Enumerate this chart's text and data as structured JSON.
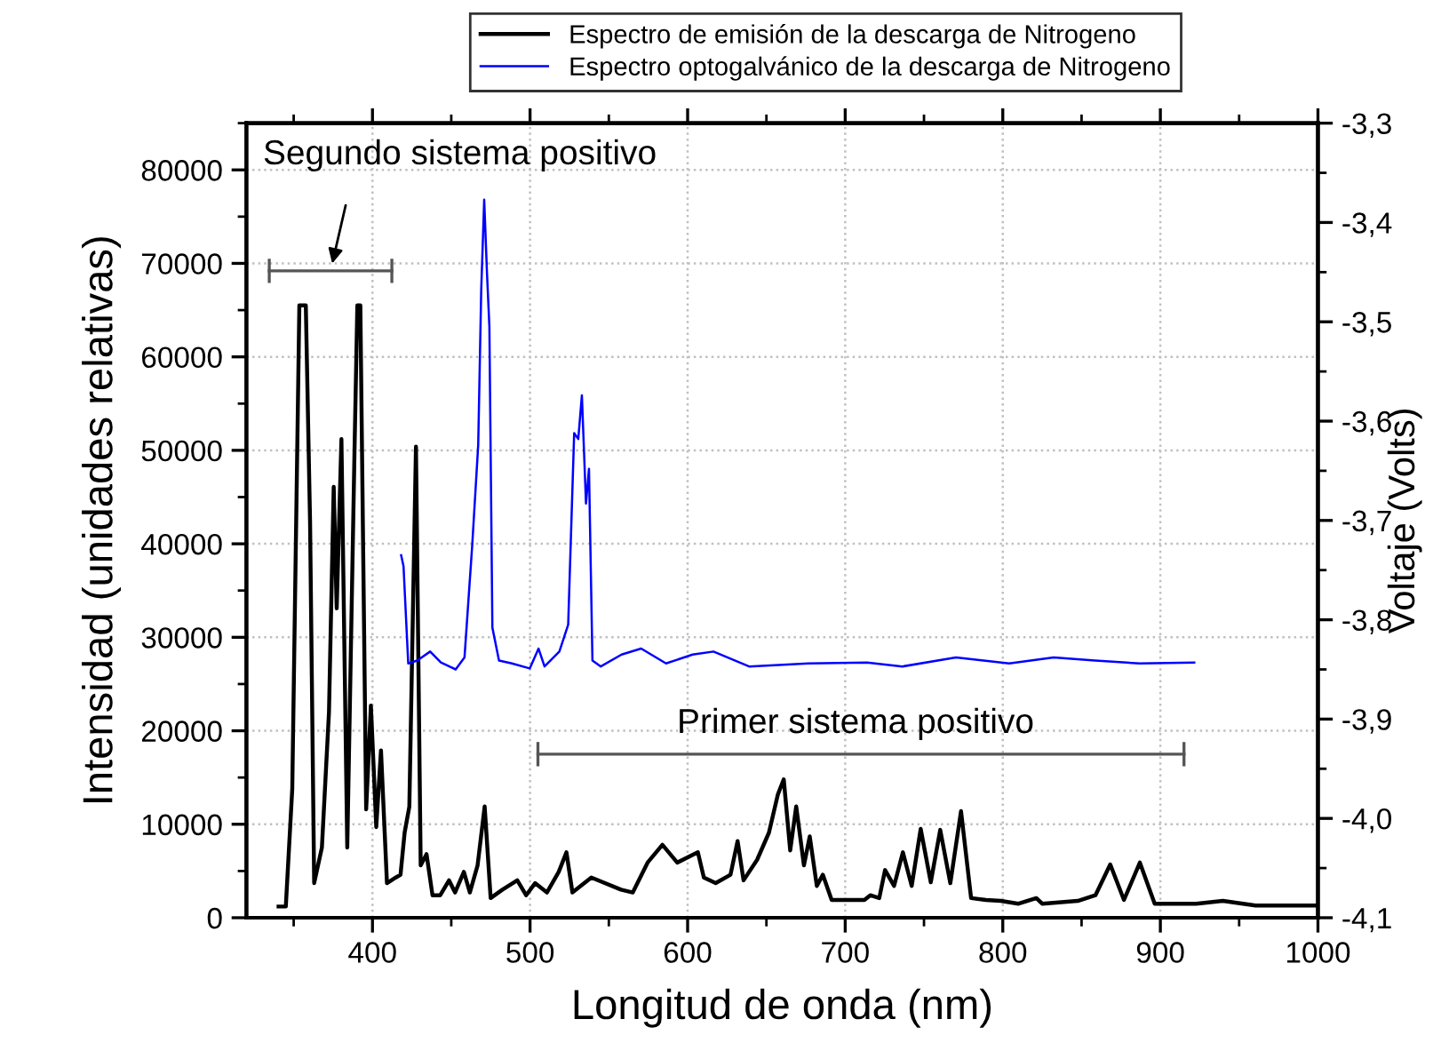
{
  "chart_data": {
    "type": "line",
    "xlabel": "Longitud de onda (nm)",
    "ylabel": "Intensidad (unidades relativas)",
    "y2label": "Voltaje (Volts)",
    "xlim": [
      320,
      1000
    ],
    "xticks": [
      400,
      500,
      600,
      700,
      800,
      900,
      1000
    ],
    "ylim": [
      0,
      85000
    ],
    "yticks": [
      0,
      10000,
      20000,
      30000,
      40000,
      50000,
      60000,
      70000,
      80000
    ],
    "y2lim": [
      -4.1,
      -3.3
    ],
    "y2ticks": [
      {
        "value": -4.1,
        "label": "-4,1"
      },
      {
        "value": -4.0,
        "label": "-4,0"
      },
      {
        "value": -3.9,
        "label": "-3,9"
      },
      {
        "value": -3.8,
        "label": "-3,8"
      },
      {
        "value": -3.7,
        "label": "-3,7"
      },
      {
        "value": -3.6,
        "label": "-3,6"
      },
      {
        "value": -3.5,
        "label": "-3,5"
      },
      {
        "value": -3.4,
        "label": "-3,4"
      },
      {
        "value": -3.3,
        "label": "-3,3"
      }
    ],
    "grid": true,
    "legend": "top",
    "marker": "none",
    "line_style": "solid",
    "series": [
      {
        "name": "Espectro de emisión de la descarga de Nitrogeno",
        "color": "#000000",
        "x": [
          340.4,
          345,
          349.1,
          353.6,
          357.7,
          360.4,
          363,
          367.9,
          372.4,
          375.4,
          377.3,
          380.3,
          384,
          388.6,
          390.4,
          392.3,
          396,
          399,
          402.4,
          405.4,
          409.2,
          414.8,
          417.8,
          420.4,
          423.4,
          427.6,
          430.6,
          434.3,
          438.1,
          443,
          448.6,
          452.4,
          458,
          461.8,
          466.7,
          471.2,
          475,
          482.5,
          491.9,
          497.5,
          503.2,
          510.7,
          518.2,
          523.1,
          526.9,
          538.9,
          557.7,
          565.2,
          574.6,
          584,
          593.4,
          606.5,
          610.3,
          617.8,
          627.2,
          631.7,
          635.5,
          644.1,
          651.6,
          657.3,
          661,
          665.1,
          668.9,
          673.8,
          677.5,
          682,
          685.8,
          691.4,
          712.2,
          715.9,
          721.6,
          725.3,
          731,
          736.6,
          742.2,
          747.9,
          754.3,
          760.3,
          766.7,
          773.5,
          779.9,
          789.3,
          798.7,
          810,
          821.3,
          825,
          847.6,
          858.8,
          868.2,
          876.9,
          887,
          896.4,
          922.7,
          939.7,
          960.4,
          998
        ],
        "values": [
          1200,
          1200,
          13800,
          65500,
          65500,
          42300,
          3700,
          7500,
          22000,
          46100,
          33100,
          51200,
          7500,
          49900,
          65500,
          65500,
          11600,
          22700,
          9700,
          17900,
          3700,
          4300,
          4600,
          9100,
          11900,
          50400,
          5600,
          6800,
          2400,
          2400,
          4000,
          2700,
          4900,
          2700,
          5600,
          11900,
          2100,
          3000,
          4000,
          2400,
          3700,
          2700,
          4900,
          7000,
          2700,
          4300,
          3000,
          2700,
          5900,
          7800,
          5900,
          7000,
          4300,
          3700,
          4600,
          8200,
          4000,
          6200,
          9100,
          13200,
          14800,
          7200,
          11900,
          5600,
          8700,
          3400,
          4600,
          1900,
          1900,
          2400,
          2100,
          5100,
          3400,
          7000,
          3400,
          9500,
          3800,
          9400,
          3700,
          11400,
          2100,
          1900,
          1800,
          1500,
          2100,
          1500,
          1800,
          2400,
          5700,
          1900,
          5900,
          1500,
          1500,
          1800,
          1300,
          1300
        ]
      },
      {
        "color": "#555555",
        "x": [
          334.5,
          412.3
        ],
        "values": [
          69200,
          69200
        ],
        "errors": [
          1300,
          1300
        ]
      },
      {
        "color": "#555555",
        "x": [
          505,
          915
        ],
        "values": [
          17500,
          17500
        ],
        "errors": [
          1300,
          1300
        ]
      },
      {
        "name": "Espectro optogalvánico de la descarga de Nitrogeno",
        "color": "#0000ff",
        "axis": "y2",
        "x": [
          418.2,
          419.7,
          422.7,
          428.4,
          436.6,
          443.4,
          452.8,
          458.4,
          463.3,
          467.1,
          469,
          470.9,
          472.7,
          474.2,
          476.1,
          480.3,
          488.5,
          499.8,
          505.4,
          509.2,
          518.6,
          524.2,
          528,
          530.6,
          532.9,
          535.5,
          537.4,
          539.6,
          544.9,
          558.1,
          570.5,
          586.3,
          603.2,
          616.4,
          639,
          676.6,
          713.8,
          736.4,
          770.3,
          804.1,
          832.3,
          858.6,
          886.8,
          921.5
        ],
        "values": [
          -3.735,
          -3.746,
          -3.844,
          -3.841,
          -3.832,
          -3.843,
          -3.85,
          -3.838,
          -3.725,
          -3.624,
          -3.469,
          -3.377,
          -3.452,
          -3.505,
          -3.808,
          -3.841,
          -3.844,
          -3.849,
          -3.829,
          -3.847,
          -3.832,
          -3.805,
          -3.612,
          -3.618,
          -3.574,
          -3.683,
          -3.648,
          -3.841,
          -3.847,
          -3.835,
          -3.829,
          -3.844,
          -3.835,
          -3.832,
          -3.847,
          -3.844,
          -3.843,
          -3.847,
          -3.838,
          -3.844,
          -3.838,
          -3.841,
          -3.844,
          -3.843
        ]
      }
    ],
    "annotations": [
      {
        "text": "Segundo sistema positivo",
        "x": 373.4,
        "y": 69200
      },
      {
        "text": "Primer sistema positivo",
        "x": 710,
        "y": 17500
      }
    ]
  }
}
